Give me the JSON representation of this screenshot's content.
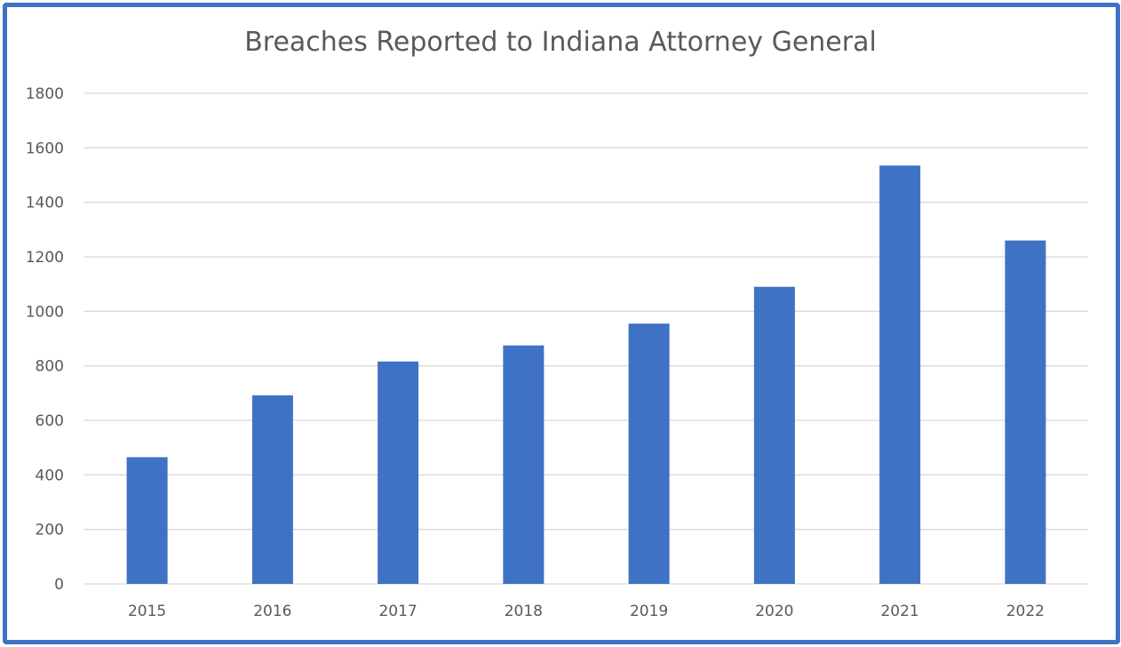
{
  "chart_data": {
    "type": "bar",
    "title": "Breaches Reported to Indiana Attorney General",
    "xlabel": "",
    "ylabel": "",
    "categories": [
      "2015",
      "2016",
      "2017",
      "2018",
      "2019",
      "2020",
      "2021",
      "2022"
    ],
    "values": [
      465,
      692,
      816,
      875,
      955,
      1090,
      1535,
      1260
    ],
    "ylim": [
      0,
      1800
    ],
    "yticks": [
      "0",
      "200",
      "400",
      "600",
      "800",
      "1000",
      "1200",
      "1400",
      "1600",
      "1800"
    ],
    "grid": true,
    "legend": "none",
    "colors": {
      "bar": "#3f72c4",
      "border": "#3f72c4",
      "grid": "#d9d9d9",
      "text": "#595959"
    }
  }
}
